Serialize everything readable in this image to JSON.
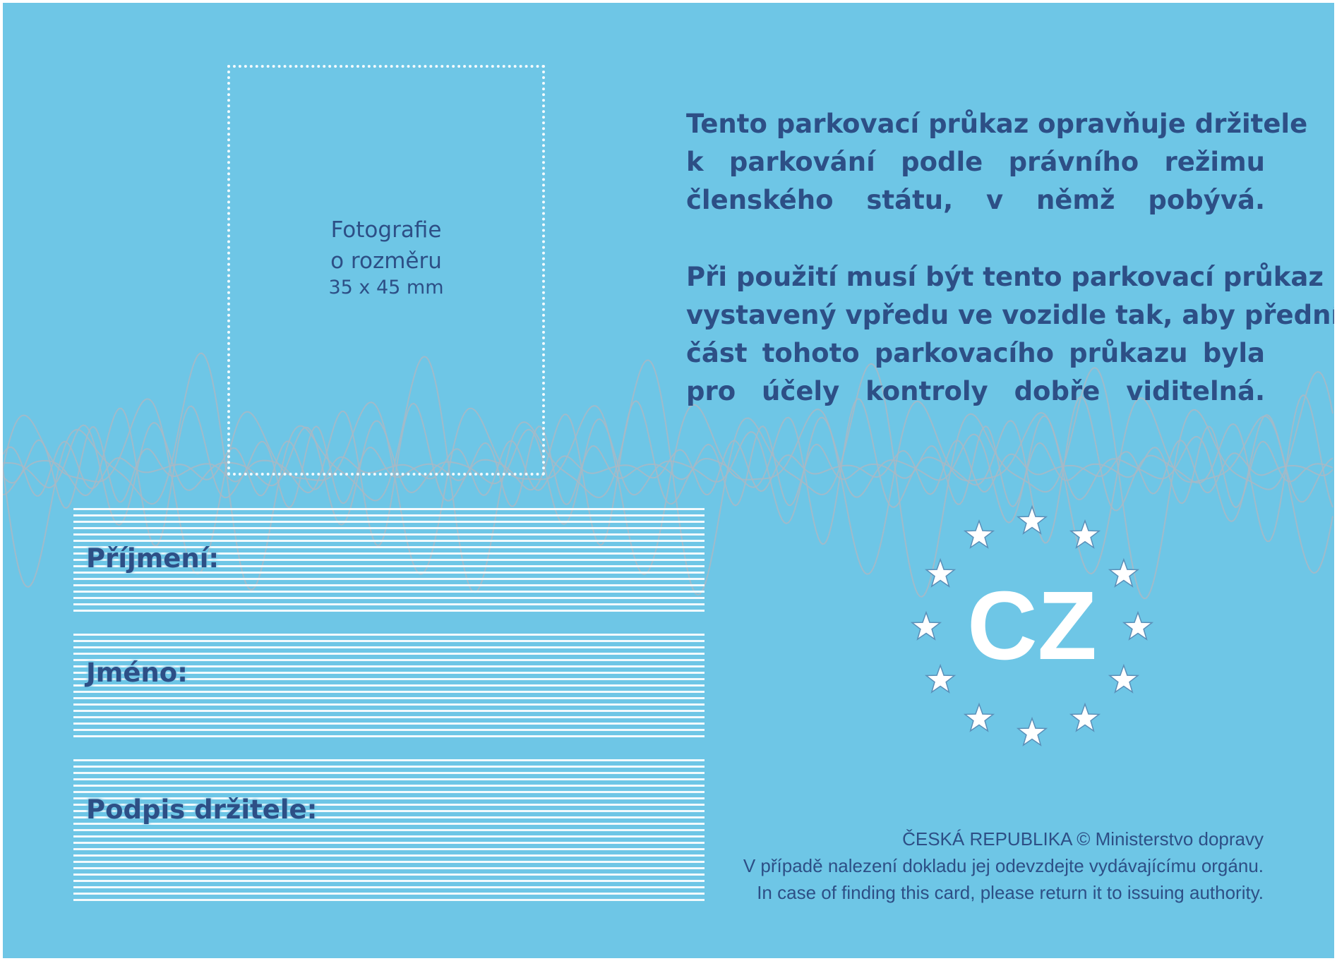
{
  "colors": {
    "card_background": "#6ec6e6",
    "text_dark_blue": "#2d4f86",
    "guilloche_lines": "#a8b9c6",
    "field_lines": "#f2fafd"
  },
  "photo_box": {
    "line1": "Fotografie",
    "line2": "o rozměru",
    "line3": "35 x 45 mm"
  },
  "notice": {
    "paragraph1": [
      "Tento parkovací průkaz opravňuje držitele",
      "k parkování podle právního režimu",
      "členského státu, v němž pobývá."
    ],
    "paragraph2": [
      "Při použití musí být tento parkovací průkaz",
      "vystavený vpředu ve vozidle tak, aby přední",
      "část tohoto parkovacího průkazu byla",
      "pro účely kontroly dobře viditelná."
    ]
  },
  "fields": {
    "surname_label": "Příjmení:",
    "name_label": "Jméno:",
    "signature_label": "Podpis držitele:"
  },
  "emblem": {
    "country_code": "CZ",
    "star_count": 12,
    "icon": "eu-stars-circle-icon"
  },
  "footer": {
    "line1": "ČESKÁ REPUBLIKA © Ministerstvo dopravy",
    "line2": "V případě nalezení dokladu jej odevzdejte vydávajícímu orgánu.",
    "line3": "In case of finding this card, please return it to issuing authority."
  }
}
